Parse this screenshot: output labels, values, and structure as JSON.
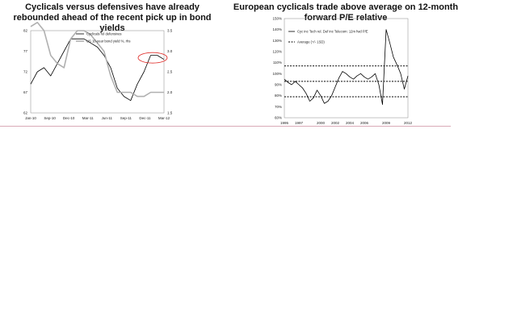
{
  "page": {
    "background": "#ffffff",
    "divider_color": "#d9a9b7"
  },
  "chart_data": [
    {
      "type": "line",
      "title": "Cyclicals versus defensives have already rebounded ahead of the recent pick up in bond yields",
      "x_ticks": [
        "Jan-10",
        "Sep-10",
        "Dec-10",
        "Mar-11",
        "Jun-11",
        "Sep-11",
        "Dec-11",
        "Mar-12"
      ],
      "y_left_ticks": [
        "62",
        "67",
        "72",
        "77",
        "82"
      ],
      "y_left_range": [
        62,
        82
      ],
      "y_right_ticks": [
        "1.5",
        "2.0",
        "2.5",
        "3.0",
        "3.5"
      ],
      "y_right_range": [
        1.5,
        3.5
      ],
      "legend": {
        "position": "top",
        "entries": [
          "Cyclicals rel defensives",
          "US 10-year bond yield %, rhs"
        ]
      },
      "grid": false,
      "annotation": "red ellipse around the recent rise in the cyclicals series",
      "series": [
        {
          "name": "Cyclicals rel defensives",
          "axis": "left",
          "color": "#000000",
          "x": [
            0,
            0.05,
            0.1,
            0.15,
            0.2,
            0.25,
            0.3,
            0.35,
            0.4,
            0.45,
            0.5,
            0.55,
            0.6,
            0.65,
            0.7,
            0.75,
            0.8,
            0.85,
            0.9,
            0.95,
            1.0
          ],
          "values": [
            69,
            72,
            73,
            71,
            74,
            77,
            80,
            80,
            80,
            79,
            78,
            76,
            73,
            68,
            66,
            65,
            69,
            72,
            76,
            76,
            75
          ]
        },
        {
          "name": "US 10-year bond yield %, rhs",
          "axis": "right",
          "color": "#b0b0b0",
          "x": [
            0,
            0.05,
            0.1,
            0.15,
            0.2,
            0.25,
            0.3,
            0.35,
            0.4,
            0.45,
            0.5,
            0.55,
            0.6,
            0.65,
            0.7,
            0.75,
            0.8,
            0.85,
            0.9,
            0.95,
            1.0
          ],
          "values": [
            3.6,
            3.7,
            3.5,
            2.9,
            2.7,
            2.6,
            3.3,
            3.5,
            3.5,
            3.4,
            3.2,
            3.0,
            2.4,
            2.0,
            2.0,
            2.0,
            1.9,
            1.9,
            2.0,
            2.0,
            2.0
          ]
        }
      ]
    },
    {
      "type": "line",
      "title": "European cyclicals trade above average on 12-month forward P/E relative",
      "x_ticks": [
        "1995",
        "1997",
        "2000",
        "2002",
        "2004",
        "2006",
        "2009",
        "2012"
      ],
      "y_ticks": [
        "60%",
        "70%",
        "80%",
        "90%",
        "100%",
        "110%",
        "120%",
        "130%",
        "140%",
        "150%"
      ],
      "y_range": [
        0.6,
        1.5
      ],
      "legend": {
        "position": "top-left",
        "entries": [
          "Cyc inc Tech rel. Def inc Telecom: 12m fwd P/E",
          "Average (+/- 1SD)"
        ]
      },
      "grid": false,
      "reference_lines": {
        "average": 0.93,
        "upper": 1.07,
        "lower": 0.79
      },
      "series": [
        {
          "name": "Cyc inc Tech rel. Def inc Telecom: 12m fwd P/E",
          "color": "#000000",
          "x": [
            1995.0,
            1995.5,
            1996.0,
            1996.5,
            1997.0,
            1997.5,
            1998.0,
            1998.5,
            1999.0,
            1999.5,
            2000.0,
            2000.5,
            2001.0,
            2001.5,
            2002.0,
            2002.5,
            2003.0,
            2003.5,
            2004.0,
            2004.5,
            2005.0,
            2005.5,
            2006.0,
            2006.5,
            2007.0,
            2007.5,
            2008.0,
            2008.5,
            2009.0,
            2009.5,
            2010.0,
            2010.5,
            2011.0,
            2011.5,
            2012.0
          ],
          "values": [
            0.95,
            0.92,
            0.9,
            0.93,
            0.9,
            0.87,
            0.82,
            0.75,
            0.78,
            0.85,
            0.8,
            0.73,
            0.75,
            0.8,
            0.88,
            0.96,
            1.02,
            1.0,
            0.97,
            0.95,
            0.98,
            1.0,
            0.97,
            0.95,
            0.97,
            1.0,
            0.9,
            0.72,
            1.4,
            1.28,
            1.15,
            1.08,
            1.0,
            0.86,
            0.98
          ]
        }
      ]
    }
  ]
}
